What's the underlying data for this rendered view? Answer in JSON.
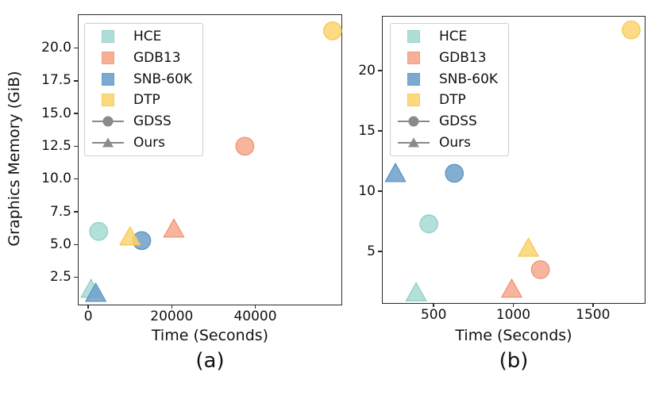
{
  "figure": {
    "background": "#ffffff",
    "captions": [
      "(a)",
      "(b)"
    ]
  },
  "palette": {
    "HCE": {
      "fill": "#a6dbd3",
      "edge": "#8ed0c6"
    },
    "GDB13": {
      "fill": "#f5a88c",
      "edge": "#f09378"
    },
    "SNB-60K": {
      "fill": "#6da0ca",
      "edge": "#5a93c3"
    },
    "DTP": {
      "fill": "#fbd571",
      "edge": "#f8c84f"
    },
    "method_gray": "#8a8a8a",
    "spine": "#2a2a2a"
  },
  "legend": {
    "position": "upper left",
    "entries": [
      {
        "label": "HCE",
        "swatch": "patch",
        "dataset": "HCE"
      },
      {
        "label": "GDB13",
        "swatch": "patch",
        "dataset": "GDB13"
      },
      {
        "label": "SNB-60K",
        "swatch": "patch",
        "dataset": "SNB-60K"
      },
      {
        "label": "DTP",
        "swatch": "patch",
        "dataset": "DTP"
      },
      {
        "label": "GDSS",
        "swatch": "circle",
        "dataset": null
      },
      {
        "label": "Ours",
        "swatch": "triangle",
        "dataset": null
      }
    ]
  },
  "chart_data": [
    {
      "type": "scatter",
      "caption": "(a)",
      "xlabel": "Time (Seconds)",
      "ylabel": "Graphics Memory (GiB)",
      "grid": false,
      "xlim": [
        -2300,
        61000
      ],
      "ylim": [
        0.4,
        22.6
      ],
      "xticks": [
        0,
        20000,
        40000
      ],
      "xtick_labels": [
        "0",
        "20000",
        "40000"
      ],
      "yticks": [
        2.5,
        5.0,
        7.5,
        10.0,
        12.5,
        15.0,
        17.5,
        20.0
      ],
      "ytick_labels": [
        "2.5",
        "5.0",
        "7.5",
        "10.0",
        "12.5",
        "15.0",
        "17.5",
        "20.0"
      ],
      "series": [
        {
          "dataset": "HCE",
          "method": "GDSS",
          "marker": "circle",
          "x": 2500,
          "y": 6.1
        },
        {
          "dataset": "HCE",
          "method": "Ours",
          "marker": "triangle",
          "x": 700,
          "y": 1.7
        },
        {
          "dataset": "GDB13",
          "method": "GDSS",
          "marker": "circle",
          "x": 37500,
          "y": 12.6
        },
        {
          "dataset": "GDB13",
          "method": "Ours",
          "marker": "triangle",
          "x": 20500,
          "y": 6.3
        },
        {
          "dataset": "SNB-60K",
          "method": "GDSS",
          "marker": "circle",
          "x": 12800,
          "y": 5.4
        },
        {
          "dataset": "SNB-60K",
          "method": "Ours",
          "marker": "triangle",
          "x": 1800,
          "y": 1.4
        },
        {
          "dataset": "DTP",
          "method": "GDSS",
          "marker": "circle",
          "x": 58500,
          "y": 21.4
        },
        {
          "dataset": "DTP",
          "method": "Ours",
          "marker": "triangle",
          "x": 10000,
          "y": 5.7
        }
      ]
    },
    {
      "type": "scatter",
      "caption": "(b)",
      "xlabel": "Time (Seconds)",
      "ylabel": "",
      "grid": false,
      "xlim": [
        180,
        1835
      ],
      "ylim": [
        0.7,
        24.6
      ],
      "xticks": [
        500,
        1000,
        1500
      ],
      "xtick_labels": [
        "500",
        "1000",
        "1500"
      ],
      "yticks": [
        5,
        10,
        15,
        20
      ],
      "ytick_labels": [
        "5",
        "10",
        "15",
        "20"
      ],
      "series": [
        {
          "dataset": "HCE",
          "method": "GDSS",
          "marker": "circle",
          "x": 470,
          "y": 7.4
        },
        {
          "dataset": "HCE",
          "method": "Ours",
          "marker": "triangle",
          "x": 390,
          "y": 1.7
        },
        {
          "dataset": "GDB13",
          "method": "GDSS",
          "marker": "circle",
          "x": 1170,
          "y": 3.6
        },
        {
          "dataset": "GDB13",
          "method": "Ours",
          "marker": "triangle",
          "x": 990,
          "y": 2.0
        },
        {
          "dataset": "SNB-60K",
          "method": "GDSS",
          "marker": "circle",
          "x": 630,
          "y": 11.6
        },
        {
          "dataset": "SNB-60K",
          "method": "Ours",
          "marker": "triangle",
          "x": 260,
          "y": 11.6
        },
        {
          "dataset": "DTP",
          "method": "GDSS",
          "marker": "circle",
          "x": 1740,
          "y": 23.5
        },
        {
          "dataset": "DTP",
          "method": "Ours",
          "marker": "triangle",
          "x": 1095,
          "y": 5.4
        }
      ]
    }
  ]
}
